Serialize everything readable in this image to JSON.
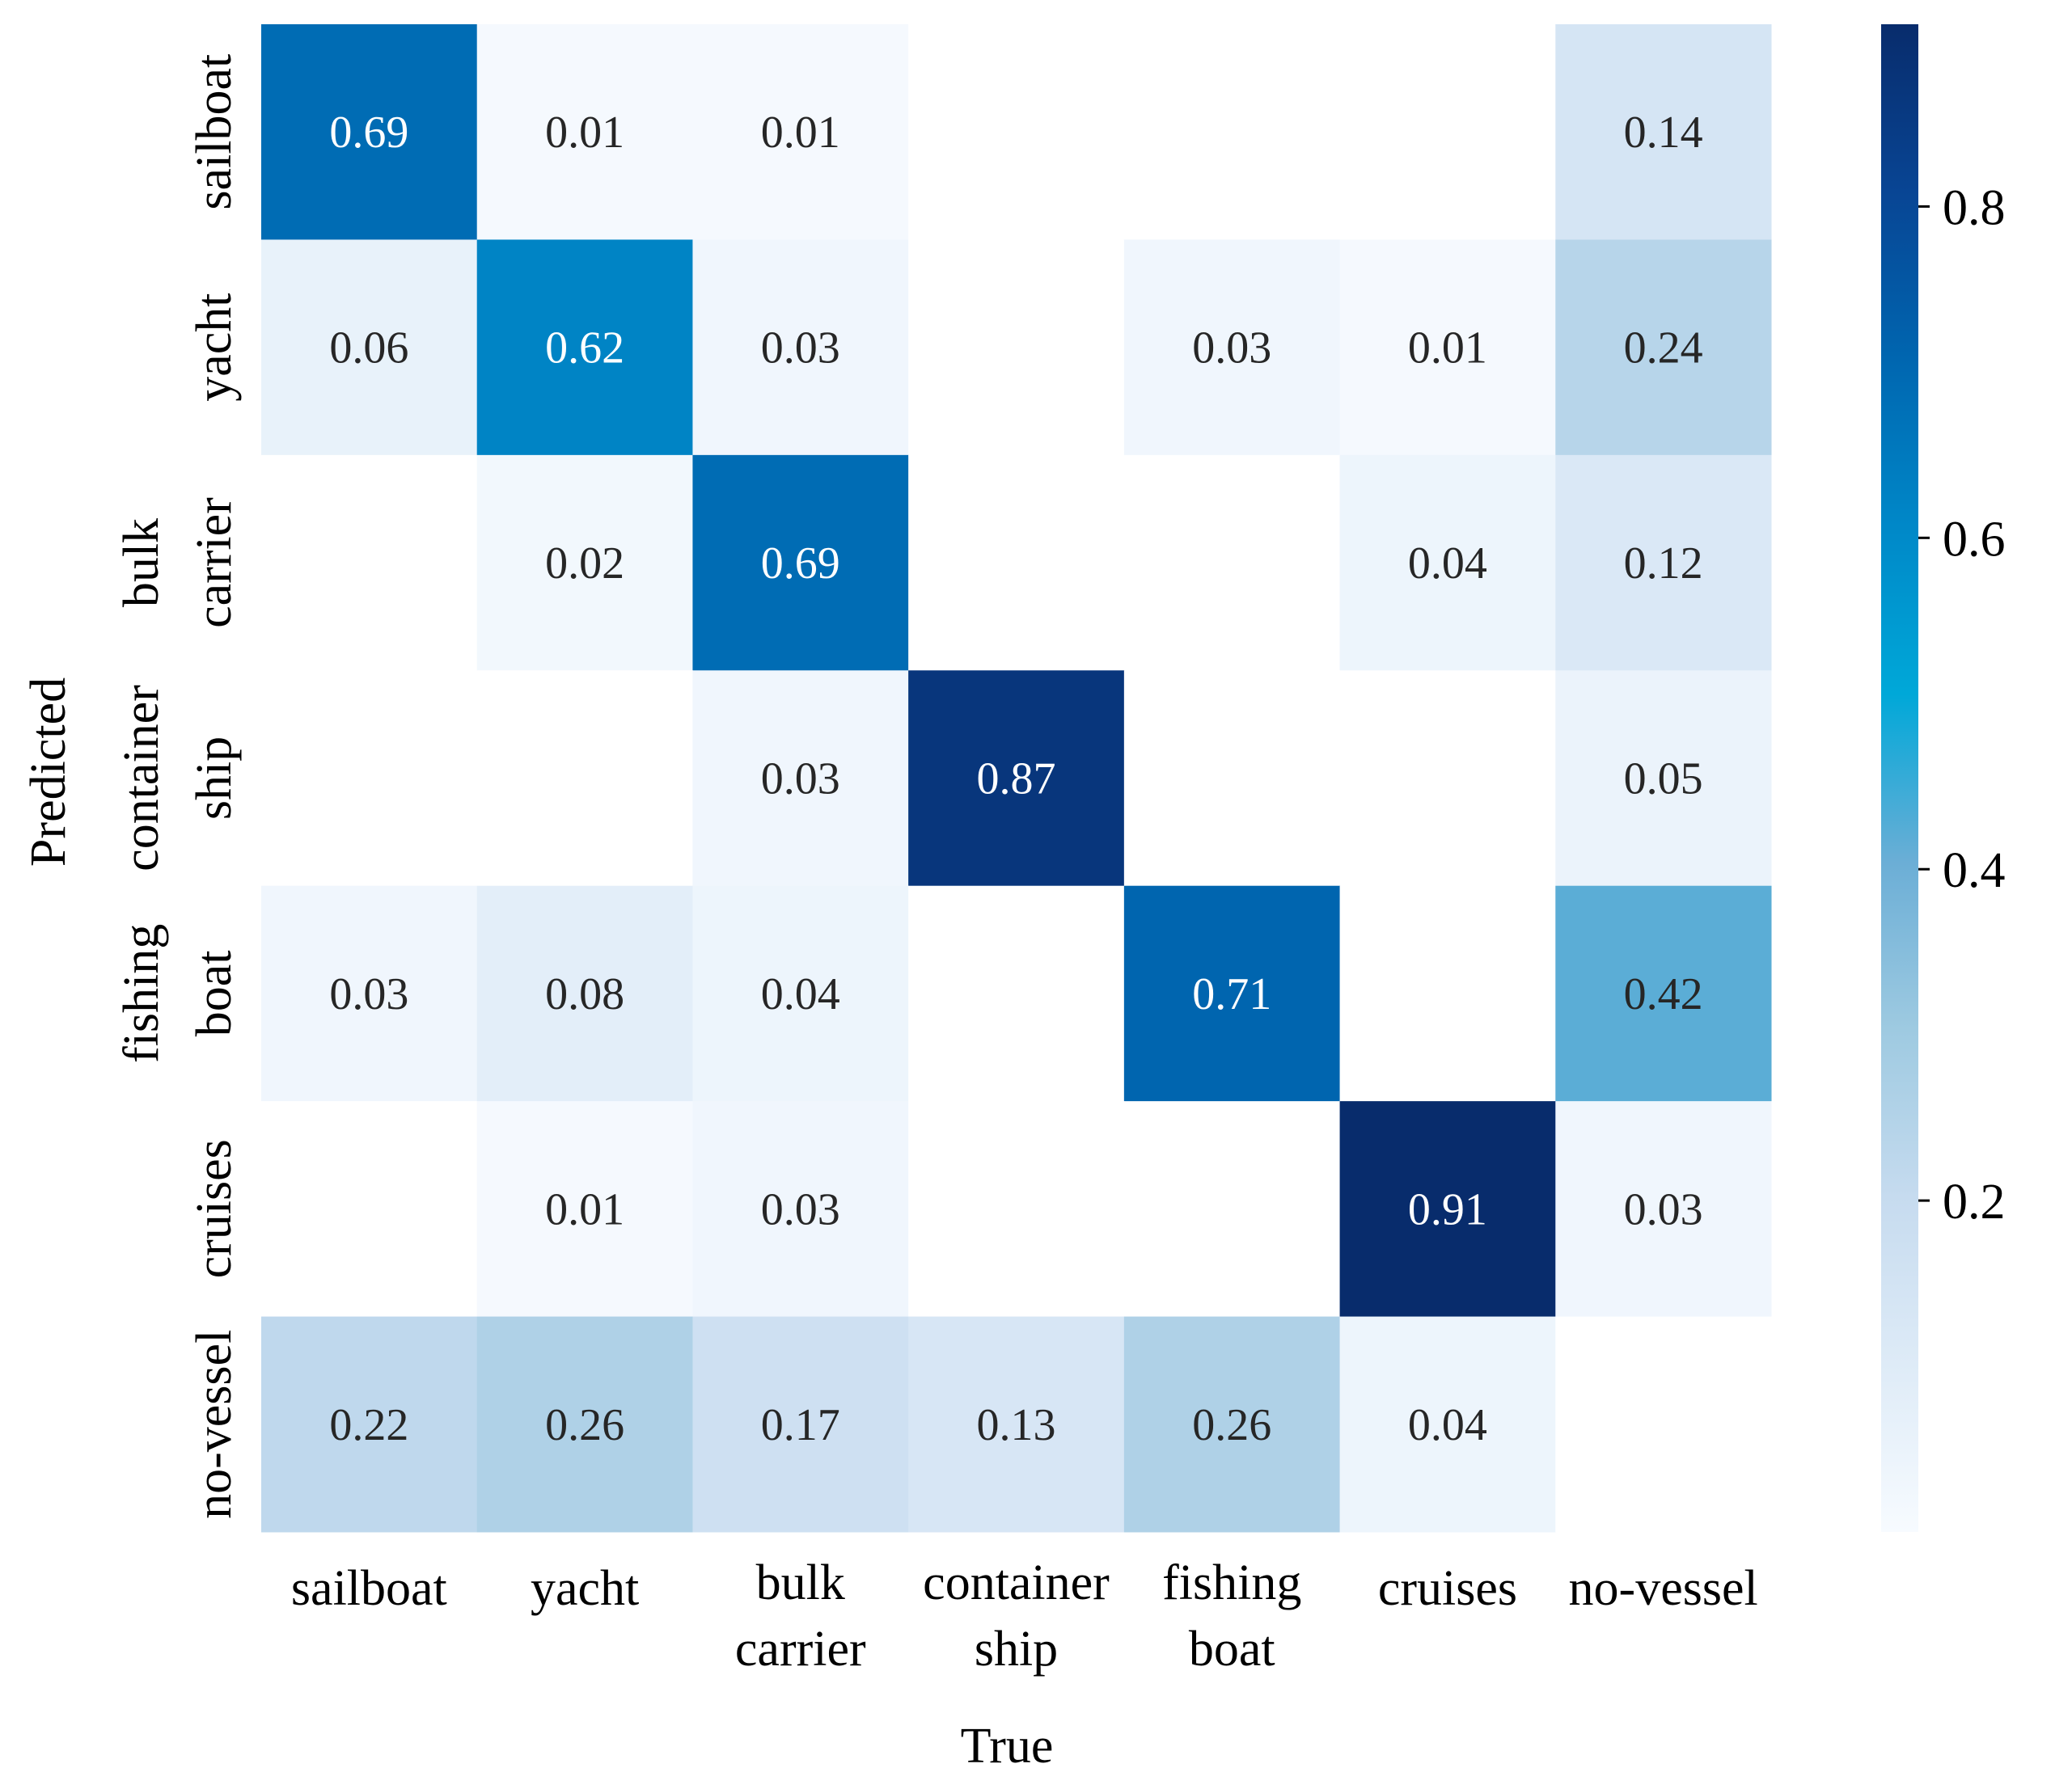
{
  "chart_data": {
    "type": "heatmap",
    "title": "",
    "xlabel": "True",
    "ylabel": "Predicted",
    "x_categories": [
      [
        "sailboat"
      ],
      [
        "yacht"
      ],
      [
        "bulk",
        "carrier"
      ],
      [
        "container",
        "ship"
      ],
      [
        "fishing",
        "boat"
      ],
      [
        "cruises"
      ],
      [
        "no-vessel"
      ]
    ],
    "y_categories": [
      [
        "sailboat"
      ],
      [
        "yacht"
      ],
      [
        "bulk",
        "carrier"
      ],
      [
        "container",
        "ship"
      ],
      [
        "fishing",
        "boat"
      ],
      [
        "cruises"
      ],
      [
        "no-vessel"
      ]
    ],
    "values": [
      [
        0.69,
        0.01,
        0.01,
        null,
        null,
        null,
        0.14
      ],
      [
        0.06,
        0.62,
        0.03,
        null,
        0.03,
        0.01,
        0.24
      ],
      [
        null,
        0.02,
        0.69,
        null,
        null,
        0.04,
        0.12
      ],
      [
        null,
        null,
        0.03,
        0.87,
        null,
        null,
        0.05
      ],
      [
        0.03,
        0.08,
        0.04,
        null,
        0.71,
        null,
        0.42
      ],
      [
        null,
        0.01,
        0.03,
        null,
        null,
        0.91,
        0.03
      ],
      [
        0.22,
        0.26,
        0.17,
        0.13,
        0.26,
        0.04,
        null
      ]
    ],
    "labels": [
      [
        "0.69",
        "0.01",
        "0.01",
        "",
        "",
        "",
        "0.14"
      ],
      [
        "0.06",
        "0.62",
        "0.03",
        "",
        "0.03",
        "0.01",
        "0.24"
      ],
      [
        "",
        "0.02",
        "0.69",
        "",
        "",
        "0.04",
        "0.12"
      ],
      [
        "",
        "",
        "0.03",
        "0.87",
        "",
        "",
        "0.05"
      ],
      [
        "0.03",
        "0.08",
        "0.04",
        "",
        "0.71",
        "",
        "0.42"
      ],
      [
        "",
        "0.01",
        "0.03",
        "",
        "",
        "0.91",
        "0.03"
      ],
      [
        "0.22",
        "0.26",
        "0.17",
        "0.13",
        "0.26",
        "0.04",
        ""
      ]
    ],
    "colormap": "Blues",
    "colorbar": {
      "range": [
        0.0,
        0.91
      ],
      "ticks": [
        0.2,
        0.4,
        0.6,
        0.8
      ],
      "tick_labels": [
        "0.2",
        "0.4",
        "0.6",
        "0.8"
      ]
    },
    "color_stops": [
      "#f7fbff",
      "#deebf7",
      "#c6dbef",
      "#9ecae1",
      "#6baed6",
      "#00a8d8",
      "#0088c8",
      "#0066b0",
      "#084594",
      "#082c6c"
    ]
  }
}
